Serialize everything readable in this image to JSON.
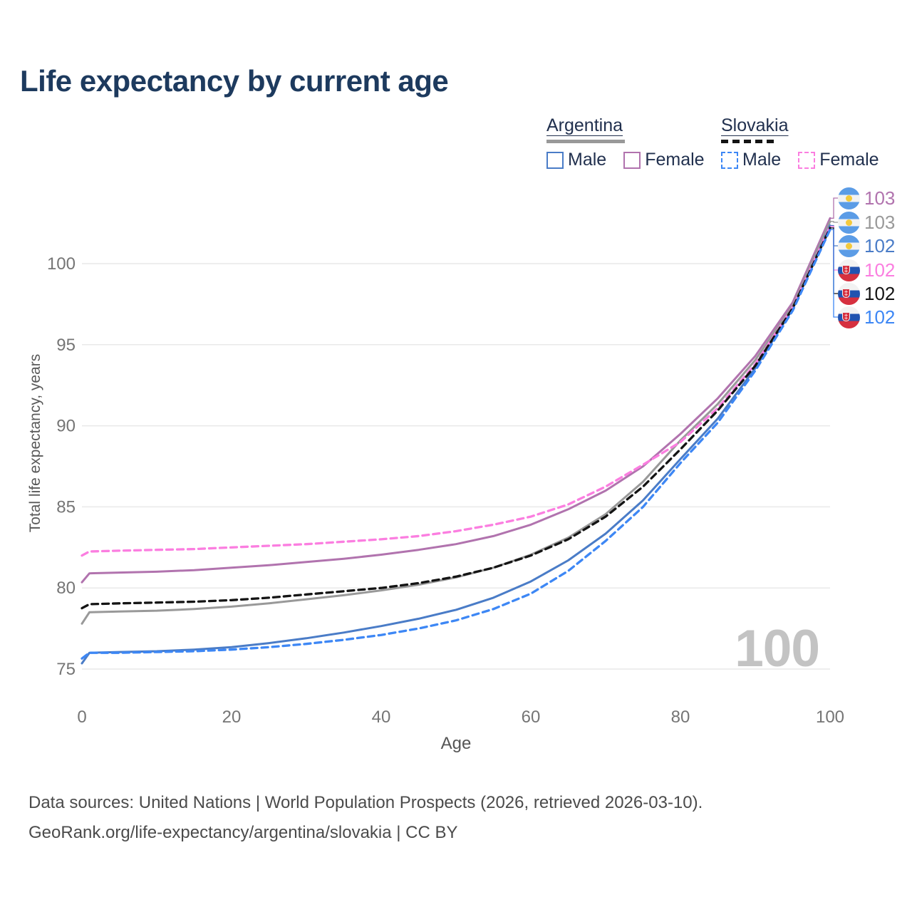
{
  "title": "Life expectancy by current age",
  "watermark": "100",
  "legend": {
    "argentina": {
      "label": "Argentina",
      "items": [
        {
          "label": "Male",
          "color": "#4a7cc7"
        },
        {
          "label": "Female",
          "color": "#b173ae"
        }
      ]
    },
    "slovakia": {
      "label": "Slovakia",
      "items": [
        {
          "label": "Male",
          "color": "#3d87f5"
        },
        {
          "label": "Female",
          "color": "#fb7ee0"
        }
      ]
    }
  },
  "y_axis": {
    "title": "Total life expectancy, years",
    "ticks": [
      75,
      80,
      85,
      90,
      95,
      100
    ]
  },
  "x_axis": {
    "title": "Age",
    "ticks": [
      0,
      20,
      40,
      60,
      80,
      100
    ]
  },
  "footer": {
    "line1": "Data sources: United Nations | World Population Prospects (2026, retrieved 2026-03-10).",
    "line2": "GeoRank.org/life-expectancy/argentina/slovakia | CC BY"
  },
  "chart_data": {
    "type": "line",
    "title": "Life expectancy by current age",
    "xlabel": "Age",
    "ylabel": "Total life expectancy, years",
    "xlim": [
      0,
      100
    ],
    "ylim": [
      74,
      104
    ],
    "grid": true,
    "legend_position": "top-right",
    "x": [
      0,
      1,
      5,
      10,
      15,
      20,
      25,
      30,
      35,
      40,
      45,
      50,
      55,
      60,
      65,
      70,
      75,
      80,
      85,
      90,
      95,
      100
    ],
    "series": [
      {
        "name": "Argentina Female",
        "color": "#b173ae",
        "dash": false,
        "flag": "argentina-flag",
        "end_label": "103",
        "values": [
          80.35,
          80.9,
          80.95,
          81.0,
          81.1,
          81.25,
          81.4,
          81.6,
          81.8,
          82.05,
          82.35,
          82.7,
          83.2,
          83.9,
          84.85,
          86.0,
          87.5,
          89.5,
          91.7,
          94.3,
          97.6,
          102.8
        ]
      },
      {
        "name": "Argentina Both sexes",
        "color": "#999999",
        "dash": false,
        "flag": "argentina-flag",
        "end_label": "103",
        "values": [
          77.8,
          78.5,
          78.55,
          78.6,
          78.7,
          78.85,
          79.05,
          79.3,
          79.55,
          79.85,
          80.2,
          80.65,
          81.25,
          82.05,
          83.1,
          84.55,
          86.55,
          89.1,
          91.35,
          94.05,
          97.4,
          102.6
        ]
      },
      {
        "name": "Argentina Male",
        "color": "#4a7cc7",
        "dash": false,
        "flag": "argentina-flag",
        "end_label": "102",
        "values": [
          75.35,
          76.0,
          76.05,
          76.1,
          76.2,
          76.35,
          76.6,
          76.9,
          77.25,
          77.65,
          78.1,
          78.65,
          79.4,
          80.4,
          81.7,
          83.35,
          85.4,
          87.95,
          90.45,
          93.55,
          97.2,
          102.35
        ]
      },
      {
        "name": "Slovakia Female",
        "color": "#fb7ee0",
        "dash": true,
        "flag": "slovakia-flag",
        "end_label": "102",
        "values": [
          82.0,
          82.25,
          82.3,
          82.35,
          82.4,
          82.5,
          82.6,
          82.7,
          82.85,
          83.0,
          83.2,
          83.5,
          83.9,
          84.4,
          85.15,
          86.25,
          87.6,
          89.0,
          91.1,
          93.8,
          97.3,
          102.3
        ]
      },
      {
        "name": "Slovakia Both sexes",
        "color": "#141414",
        "dash": true,
        "flag": "slovakia-flag",
        "end_label": "102",
        "values": [
          78.75,
          79.0,
          79.05,
          79.1,
          79.15,
          79.25,
          79.4,
          79.6,
          79.8,
          80.0,
          80.3,
          80.7,
          81.25,
          82.0,
          83.0,
          84.4,
          86.25,
          88.55,
          90.95,
          93.7,
          97.25,
          102.2
        ]
      },
      {
        "name": "Slovakia Male",
        "color": "#3d87f5",
        "dash": true,
        "flag": "slovakia-flag",
        "end_label": "102",
        "values": [
          75.65,
          76.0,
          76.0,
          76.05,
          76.1,
          76.2,
          76.35,
          76.55,
          76.8,
          77.1,
          77.5,
          78.0,
          78.7,
          79.65,
          81.05,
          82.9,
          85.0,
          87.7,
          90.2,
          93.4,
          97.1,
          102.1
        ]
      }
    ]
  }
}
